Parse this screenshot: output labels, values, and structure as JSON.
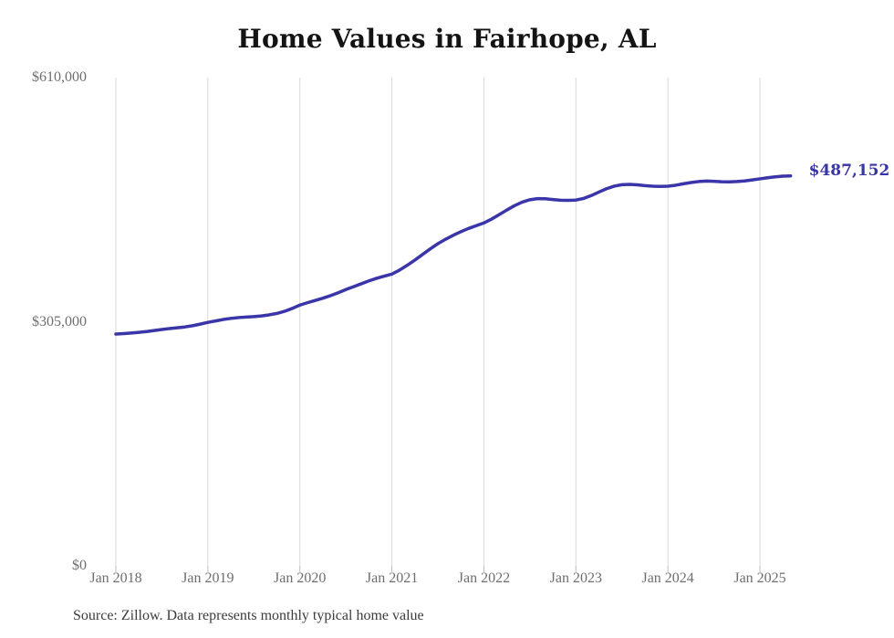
{
  "chart": {
    "title": "Home Values in Fairhope, AL",
    "source": "Source: Zillow. Data represents monthly typical home value",
    "end_label": "$487,152"
  },
  "chart_data": {
    "type": "line",
    "title": "Home Values in Fairhope, AL",
    "series_name": "Monthly typical home value",
    "unit": "USD",
    "x_start": "2018-01",
    "x_end": "2025-05",
    "x_tick_labels": [
      "Jan 2018",
      "Jan 2019",
      "Jan 2020",
      "Jan 2021",
      "Jan 2022",
      "Jan 2023",
      "Jan 2024",
      "Jan 2025"
    ],
    "x_tick_month_indices": [
      0,
      12,
      24,
      36,
      48,
      60,
      72,
      84
    ],
    "y_tick_labels": [
      "$610,000",
      "$305,000",
      "$0"
    ],
    "y_tick_values": [
      610000,
      305000,
      0
    ],
    "ylim": [
      0,
      610000
    ],
    "grid": "vertical-only",
    "legend": "none",
    "line_color": "#3a35a8",
    "end_label": "$487,152",
    "latest_value": 487152,
    "values": [
      289600,
      290200,
      290900,
      291800,
      292800,
      294000,
      295300,
      296500,
      297500,
      298500,
      300000,
      302000,
      304200,
      306000,
      307800,
      309200,
      310200,
      310800,
      311400,
      312300,
      313600,
      315400,
      318000,
      321600,
      325800,
      328800,
      331600,
      334400,
      337600,
      341200,
      345200,
      348800,
      352400,
      356000,
      359200,
      362000,
      364500,
      369500,
      375500,
      382000,
      389000,
      396000,
      402500,
      408000,
      413000,
      417500,
      421500,
      425000,
      428400,
      433200,
      438800,
      444600,
      450000,
      454400,
      457400,
      458800,
      458600,
      457600,
      456800,
      456600,
      457000,
      459000,
      462600,
      467000,
      471200,
      474400,
      476200,
      476600,
      476000,
      475000,
      474300,
      474100,
      474300,
      475500,
      477300,
      478900,
      480100,
      480700,
      480500,
      479900,
      479700,
      480100,
      480900,
      482100,
      483500,
      484900,
      486000,
      486800,
      487152
    ]
  }
}
